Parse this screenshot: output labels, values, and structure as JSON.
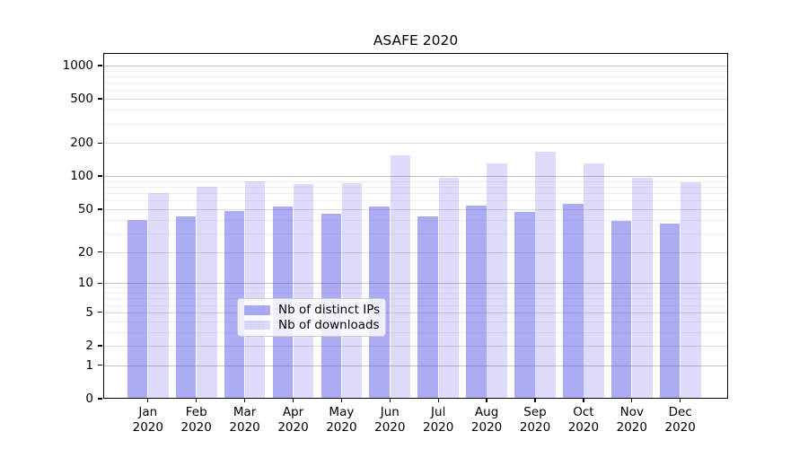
{
  "title": "ASAFE 2020",
  "chart_data": {
    "type": "bar",
    "title": "ASAFE 2020",
    "scale": "log10(value+1)",
    "ylim": [
      0,
      1300
    ],
    "grid": true,
    "months": [
      "Jan",
      "Feb",
      "Mar",
      "Apr",
      "May",
      "Jun",
      "Jul",
      "Aug",
      "Sep",
      "Oct",
      "Nov",
      "Dec"
    ],
    "year_label": "2020",
    "yticks": [
      0,
      1,
      2,
      5,
      10,
      20,
      50,
      100,
      200,
      500,
      1000
    ],
    "minor_yticks": [
      3,
      4,
      6,
      7,
      8,
      9,
      30,
      40,
      60,
      70,
      80,
      90,
      300,
      400,
      600,
      700,
      800,
      900
    ],
    "series": [
      {
        "key": "distinct-ips",
        "name": "Nb of distinct IPs",
        "color": "rgba(70,70,230,0.45)",
        "values": [
          40,
          43,
          48,
          53,
          45,
          53,
          43,
          54,
          47,
          56,
          39,
          37
        ]
      },
      {
        "key": "downloads",
        "name": "Nb of downloads",
        "color": "rgba(70,70,230,0.19)",
        "values": [
          70,
          80,
          90,
          84,
          86,
          155,
          97,
          130,
          166,
          131,
          97,
          88
        ]
      }
    ],
    "legend_position": "lower center"
  },
  "colors": {
    "bar_distinct_ips": "rgba(70,70,230,0.45)",
    "bar_downloads": "rgba(70,70,230,0.19)",
    "grid_decade": "#c2c2c2",
    "grid_labeled": "#dcdcdc",
    "grid_minor": "#efefef",
    "spine": "#000000",
    "background": "#ffffff"
  }
}
